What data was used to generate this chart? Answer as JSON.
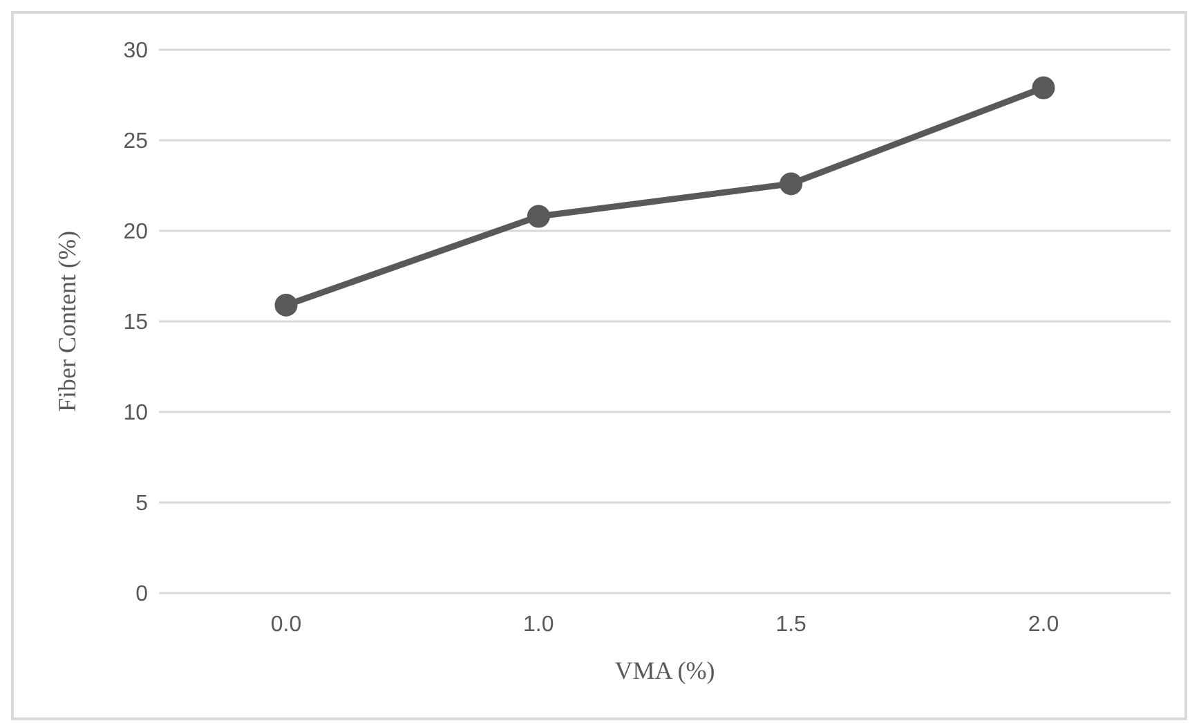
{
  "chart_data": {
    "type": "line",
    "xlabel": "VMA (%)",
    "ylabel": "Fiber Content (%)",
    "categories": [
      "0.0",
      "1.0",
      "1.5",
      "2.0"
    ],
    "series": [
      {
        "color": "#595959",
        "values": [
          15.9,
          20.8,
          22.6,
          27.9
        ]
      }
    ],
    "ylim": [
      0,
      30
    ],
    "yticks": [
      0,
      5,
      10,
      15,
      20,
      25,
      30
    ],
    "grid": "y",
    "legend": false,
    "marker": "circle",
    "line_style": "solid"
  }
}
